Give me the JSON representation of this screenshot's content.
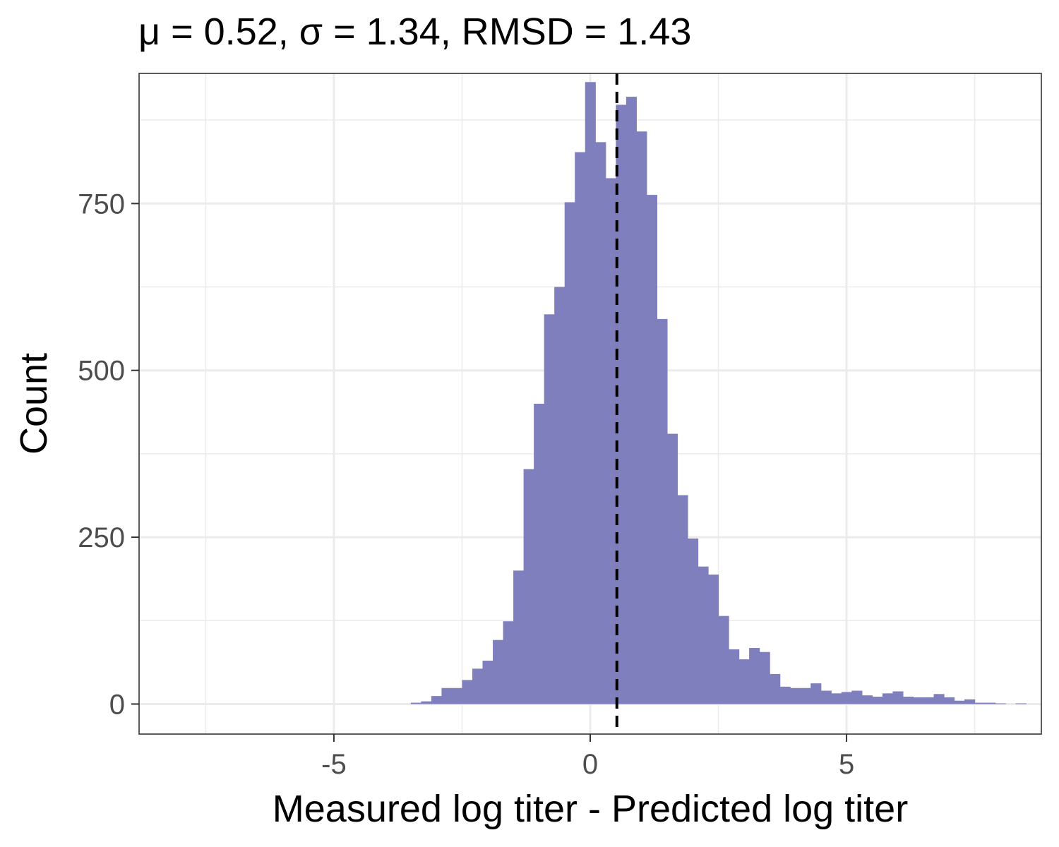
{
  "chart_data": {
    "type": "bar",
    "title": "μ = 0.52, σ = 1.34, RMSD = 1.43",
    "xlabel": "Measured log titer - Predicted log titer",
    "ylabel": "Count",
    "xlim": [
      -8.8,
      8.8
    ],
    "ylim": [
      -45,
      945
    ],
    "x_ticks": [
      -5,
      0,
      5
    ],
    "x_tick_labels": [
      "-5",
      "0",
      "5"
    ],
    "y_ticks": [
      0,
      250,
      500,
      750
    ],
    "y_tick_labels": [
      "0",
      "250",
      "500",
      "750"
    ],
    "bin_start": -3.5,
    "bin_width": 0.2,
    "counts": [
      2,
      4,
      12,
      24,
      24,
      36,
      53,
      65,
      96,
      124,
      200,
      352,
      450,
      584,
      625,
      752,
      827,
      932,
      842,
      788,
      898,
      910,
      858,
      763,
      577,
      405,
      313,
      248,
      206,
      194,
      132,
      82,
      67,
      84,
      78,
      45,
      26,
      24,
      24,
      31,
      20,
      16,
      18,
      20,
      13,
      11,
      16,
      19,
      11,
      10,
      10,
      15,
      10,
      5,
      7,
      2,
      2,
      1,
      0,
      1
    ],
    "mean_line": 0.52,
    "bar_color": "#7f7fbd",
    "grid": true
  }
}
